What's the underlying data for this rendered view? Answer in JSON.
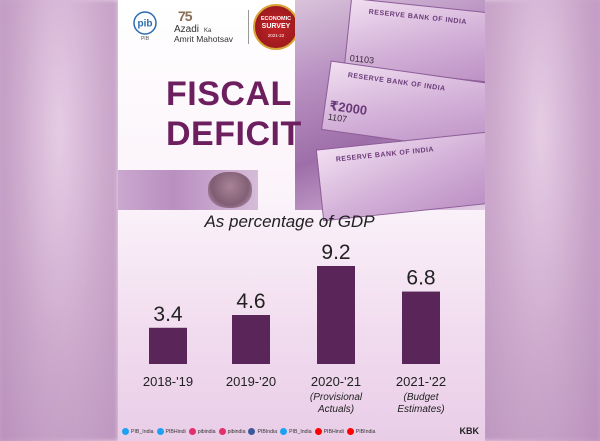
{
  "header": {
    "pib_label": "PIB",
    "azadi_line1": "Azadi",
    "azadi_ka": "Ka",
    "azadi_line2": "Amrit Mahotsav",
    "azadi_75": "75",
    "seal_line1": "ECONOMIC",
    "seal_line2": "SURVEY",
    "seal_line3": "2021-22"
  },
  "money": {
    "note_text": "RESERVE BANK OF INDIA",
    "denomination": "₹2000",
    "serial_top": "01103",
    "serial_mid": "1107"
  },
  "title_line1": "FISCAL",
  "title_line2": "DEFICIT",
  "chart_data": {
    "type": "bar",
    "title": "As percentage of GDP",
    "categories": [
      "2018-'19",
      "2019-'20",
      "2020-'21",
      "2021-'22"
    ],
    "category_notes": [
      "",
      "",
      "(Provisional Actuals)",
      "(Budget Estimates)"
    ],
    "values": [
      3.4,
      4.6,
      9.2,
      6.8
    ],
    "data_labels": [
      "3.4",
      "4.6",
      "9.2",
      "6.8"
    ],
    "ylim": [
      0,
      9.2
    ],
    "bar_color": "#5a2558",
    "grid": false
  },
  "footer": {
    "handles": [
      "PIB_India",
      "PIBHindi",
      "pibindia",
      "pibindia",
      "PIBIndia",
      "PIB_India",
      "PIBHindi",
      "PIBIndia"
    ],
    "handle_colors": [
      "#1da1f2",
      "#1da1f2",
      "#e1306c",
      "#e1306c",
      "#3b5998",
      "#1da1f2",
      "#ff0000",
      "#ff0000"
    ],
    "credit": "KBK"
  }
}
